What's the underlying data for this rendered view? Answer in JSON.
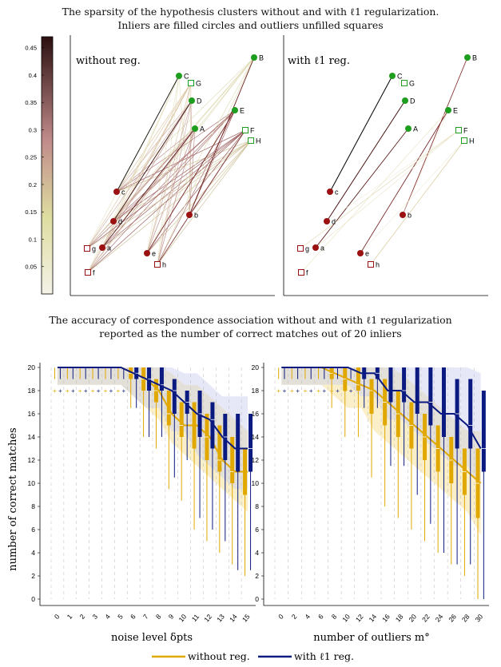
{
  "top_caption": {
    "line1": "The sparsity of the hypothesis clusters without and with ℓ1 regularization.",
    "line2": "Inliers are filled circles and outliers unfilled squares"
  },
  "colorbar": {
    "ticks": [
      "0.05",
      "0.1",
      "0.15",
      "0.2",
      "0.25",
      "0.3",
      "0.35",
      "0.4",
      "0.45"
    ],
    "colors": [
      "#f4f2e6",
      "#dedda0",
      "#c08a8a",
      "#2b0f0f"
    ]
  },
  "panel_without": {
    "title": "without reg."
  },
  "panel_with": {
    "title": "with ℓ1 reg."
  },
  "points": {
    "upper": [
      {
        "label": "A",
        "type": "inlier"
      },
      {
        "label": "B",
        "type": "inlier"
      },
      {
        "label": "C",
        "type": "inlier"
      },
      {
        "label": "D",
        "type": "inlier"
      },
      {
        "label": "E",
        "type": "inlier"
      },
      {
        "label": "F",
        "type": "outlier"
      },
      {
        "label": "G",
        "type": "outlier"
      },
      {
        "label": "H",
        "type": "outlier"
      }
    ],
    "lower": [
      {
        "label": "a",
        "type": "inlier"
      },
      {
        "label": "b",
        "type": "inlier"
      },
      {
        "label": "c",
        "type": "inlier"
      },
      {
        "label": "d",
        "type": "inlier"
      },
      {
        "label": "e",
        "type": "inlier"
      },
      {
        "label": "f",
        "type": "outlier"
      },
      {
        "label": "g",
        "type": "outlier"
      },
      {
        "label": "h",
        "type": "outlier"
      }
    ],
    "colors": {
      "upper": "#1e9e1e",
      "lower": "#9b1010"
    }
  },
  "bottom_caption": {
    "line1": "The accuracy of correspondence association without and with ℓ1 regularization",
    "line2": "reported as the number of correct matches out of 20 inliers"
  },
  "chart_data": [
    {
      "type": "box",
      "ylabel": "number of correct matches",
      "xlabel": "noise level δpts",
      "ylim": [
        0,
        20
      ],
      "yticks": [
        0,
        2,
        4,
        6,
        8,
        10,
        12,
        14,
        16,
        18,
        20
      ],
      "categories": [
        "0",
        "1",
        "2",
        "3",
        "4",
        "5",
        "6",
        "7",
        "8",
        "9",
        "10",
        "11",
        "12",
        "13",
        "14",
        "15"
      ],
      "series": [
        {
          "name": "without reg.",
          "color": "#e0a800",
          "median": [
            20,
            20,
            20,
            20,
            20,
            20,
            19.5,
            19,
            18,
            16,
            15,
            15,
            14,
            12,
            11,
            11
          ],
          "q1": [
            20,
            20,
            20,
            20,
            20,
            20,
            19,
            18,
            17,
            15,
            14,
            13,
            12,
            11,
            10,
            9
          ],
          "q3": [
            20,
            20,
            20,
            20,
            20,
            20,
            20,
            20,
            19,
            18,
            17,
            17,
            16,
            15,
            14,
            13
          ]
        },
        {
          "name": "with ℓ1 reg.",
          "color": "#0a1a80",
          "median": [
            20,
            20,
            20,
            20,
            20,
            20,
            19.5,
            19,
            18.5,
            18,
            17,
            16,
            15.5,
            14,
            13,
            13
          ],
          "q1": [
            20,
            20,
            20,
            20,
            20,
            20,
            19,
            18,
            18,
            16,
            16,
            14,
            13,
            12,
            11,
            11
          ],
          "q3": [
            20,
            20,
            20,
            20,
            20,
            20,
            20,
            20,
            20,
            19,
            18,
            18,
            17,
            16,
            16,
            16
          ]
        }
      ]
    },
    {
      "type": "box",
      "xlabel": "number of outliers m°",
      "ylim": [
        0,
        20
      ],
      "yticks": [
        0,
        2,
        4,
        6,
        8,
        10,
        12,
        14,
        16,
        18,
        20
      ],
      "categories": [
        "0",
        "2",
        "4",
        "6",
        "8",
        "10",
        "12",
        "14",
        "16",
        "18",
        "20",
        "22",
        "24",
        "26",
        "28",
        "30"
      ],
      "series": [
        {
          "name": "without reg.",
          "color": "#e0a800",
          "median": [
            20,
            20,
            20,
            20,
            19.5,
            19,
            18.5,
            18,
            17,
            16,
            15,
            14,
            13,
            12,
            11,
            10
          ],
          "q1": [
            20,
            20,
            20,
            20,
            19,
            18,
            18,
            16,
            15,
            14,
            13,
            12,
            11,
            10,
            9,
            7
          ],
          "q3": [
            20,
            20,
            20,
            20,
            20,
            20,
            20,
            19,
            19,
            18,
            17,
            16,
            15,
            14,
            13,
            13
          ]
        },
        {
          "name": "with ℓ1 reg.",
          "color": "#0a1a80",
          "median": [
            20,
            20,
            20,
            20,
            20,
            20,
            19.5,
            19.5,
            18,
            18,
            17,
            17,
            16,
            16,
            15,
            13
          ],
          "q1": [
            20,
            20,
            20,
            20,
            20,
            20,
            19,
            19,
            17,
            17,
            16,
            15,
            14,
            13,
            13,
            11
          ],
          "q3": [
            20,
            20,
            20,
            20,
            20,
            20,
            20,
            20,
            20,
            20,
            20,
            20,
            20,
            19,
            19,
            18
          ]
        }
      ]
    }
  ],
  "legend": {
    "without": "without reg.",
    "with": "with ℓ1 reg."
  }
}
